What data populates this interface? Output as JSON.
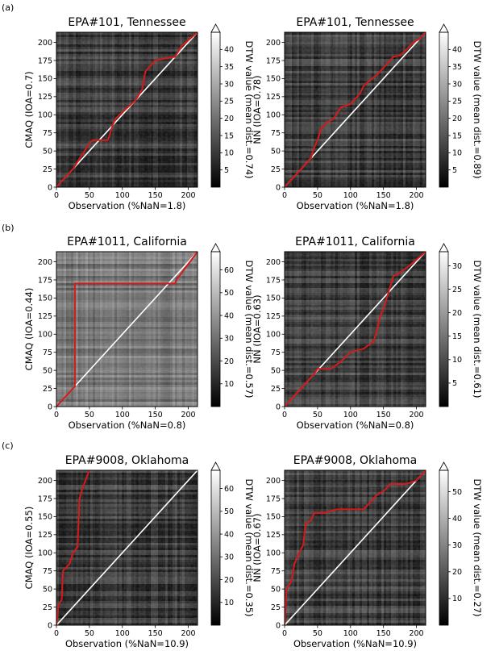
{
  "rows": [
    {
      "label": "(a)"
    },
    {
      "label": "(b)"
    },
    {
      "label": "(c)"
    }
  ],
  "colorbar_label_prefix": "DTW value (mean dist.=",
  "colorbar_label_suffix": ")",
  "chart_data": [
    {
      "type": "heatmap",
      "title": "EPA#101, Tennessee",
      "xlabel": "Observation (%NaN=1.8)",
      "ylabel": "CMAQ (IOA=0.7)",
      "colorbar_label": "DTW value (mean dist.=0.74)",
      "xlim": [
        0,
        214
      ],
      "ylim": [
        0,
        214
      ],
      "xticks": [
        0,
        50,
        100,
        150,
        200
      ],
      "yticks": [
        0,
        25,
        50,
        75,
        100,
        125,
        150,
        175,
        200
      ],
      "cbar_range": [
        0,
        45
      ],
      "cbar_ticks": [
        5,
        10,
        15,
        20,
        25,
        30,
        35,
        40
      ],
      "dtw_path": [
        [
          0,
          0
        ],
        [
          25,
          25
        ],
        [
          50,
          60
        ],
        [
          55,
          65
        ],
        [
          78,
          65
        ],
        [
          80,
          70
        ],
        [
          85,
          85
        ],
        [
          90,
          95
        ],
        [
          120,
          120
        ],
        [
          130,
          135
        ],
        [
          135,
          160
        ],
        [
          150,
          175
        ],
        [
          165,
          178
        ],
        [
          180,
          180
        ],
        [
          190,
          195
        ],
        [
          214,
          214
        ]
      ]
    },
    {
      "type": "heatmap",
      "title": "EPA#101, Tennessee",
      "xlabel": "Observation (%NaN=1.8)",
      "ylabel": "NN (IOA=0.78)",
      "colorbar_label": "DTW value (mean dist.=0.89)",
      "xlim": [
        0,
        214
      ],
      "ylim": [
        0,
        214
      ],
      "xticks": [
        0,
        50,
        100,
        150,
        200
      ],
      "yticks": [
        0,
        25,
        50,
        75,
        100,
        125,
        150,
        175,
        200
      ],
      "cbar_range": [
        0,
        45
      ],
      "cbar_ticks": [
        5,
        10,
        15,
        20,
        25,
        30,
        35,
        40
      ],
      "dtw_path": [
        [
          0,
          0
        ],
        [
          40,
          40
        ],
        [
          45,
          55
        ],
        [
          50,
          65
        ],
        [
          55,
          80
        ],
        [
          65,
          90
        ],
        [
          75,
          95
        ],
        [
          85,
          110
        ],
        [
          100,
          115
        ],
        [
          110,
          125
        ],
        [
          115,
          130
        ],
        [
          120,
          140
        ],
        [
          130,
          148
        ],
        [
          140,
          155
        ],
        [
          150,
          165
        ],
        [
          160,
          175
        ],
        [
          165,
          180
        ],
        [
          175,
          182
        ],
        [
          185,
          190
        ],
        [
          195,
          200
        ],
        [
          205,
          205
        ],
        [
          214,
          214
        ]
      ]
    },
    {
      "type": "heatmap",
      "title": "EPA#1011, California",
      "xlabel": "Observation (%NaN=0.8)",
      "ylabel": "CMAQ (IOA=0.44)",
      "colorbar_label": "DTW value (mean dist.=0.57)",
      "xlim": [
        0,
        214
      ],
      "ylim": [
        0,
        214
      ],
      "xticks": [
        0,
        50,
        100,
        150,
        200
      ],
      "yticks": [
        0,
        25,
        50,
        75,
        100,
        125,
        150,
        175,
        200
      ],
      "cbar_range": [
        0,
        68
      ],
      "cbar_ticks": [
        10,
        20,
        30,
        40,
        50,
        60
      ],
      "dtw_path": [
        [
          0,
          0
        ],
        [
          28,
          28
        ],
        [
          28,
          170
        ],
        [
          180,
          170
        ],
        [
          182,
          175
        ],
        [
          214,
          214
        ]
      ]
    },
    {
      "type": "heatmap",
      "title": "EPA#1011, California",
      "xlabel": "Observation (%NaN=0.8)",
      "ylabel": "NN (IOA=0.63)",
      "colorbar_label": "DTW value (mean dist.=0.61)",
      "xlim": [
        0,
        214
      ],
      "ylim": [
        0,
        214
      ],
      "xticks": [
        0,
        50,
        100,
        150,
        200
      ],
      "yticks": [
        0,
        25,
        50,
        75,
        100,
        125,
        150,
        175,
        200
      ],
      "cbar_range": [
        0,
        33
      ],
      "cbar_ticks": [
        5,
        10,
        15,
        20,
        25,
        30
      ],
      "dtw_path": [
        [
          0,
          0
        ],
        [
          45,
          45
        ],
        [
          50,
          52
        ],
        [
          70,
          52
        ],
        [
          85,
          62
        ],
        [
          100,
          75
        ],
        [
          120,
          80
        ],
        [
          135,
          90
        ],
        [
          140,
          105
        ],
        [
          145,
          125
        ],
        [
          150,
          135
        ],
        [
          155,
          150
        ],
        [
          160,
          165
        ],
        [
          165,
          180
        ],
        [
          175,
          185
        ],
        [
          190,
          195
        ],
        [
          214,
          214
        ]
      ]
    },
    {
      "type": "heatmap",
      "title": "EPA#9008, Oklahoma",
      "xlabel": "Observation (%NaN=10.9)",
      "ylabel": "CMAQ (IOA=0.55)",
      "colorbar_label": "DTW value (mean dist.=0.35)",
      "xlim": [
        0,
        214
      ],
      "ylim": [
        0,
        214
      ],
      "xticks": [
        0,
        50,
        100,
        150,
        200
      ],
      "yticks": [
        0,
        25,
        50,
        75,
        100,
        125,
        150,
        175,
        200
      ],
      "cbar_range": [
        0,
        68
      ],
      "cbar_ticks": [
        10,
        20,
        30,
        40,
        50,
        60
      ],
      "dtw_path": [
        [
          0,
          0
        ],
        [
          3,
          28
        ],
        [
          8,
          35
        ],
        [
          10,
          75
        ],
        [
          20,
          85
        ],
        [
          25,
          100
        ],
        [
          32,
          108
        ],
        [
          35,
          175
        ],
        [
          38,
          185
        ],
        [
          42,
          195
        ],
        [
          50,
          214
        ]
      ]
    },
    {
      "type": "heatmap",
      "title": "EPA#9008, Oklahoma",
      "xlabel": "Observation (%NaN=10.9)",
      "ylabel": "NN (IOA=0.67)",
      "colorbar_label": "DTW value (mean dist.=0.27)",
      "xlim": [
        0,
        214
      ],
      "ylim": [
        0,
        214
      ],
      "xticks": [
        0,
        50,
        100,
        150,
        200
      ],
      "yticks": [
        0,
        25,
        50,
        75,
        100,
        125,
        150,
        175,
        200
      ],
      "cbar_range": [
        0,
        58
      ],
      "cbar_ticks": [
        10,
        20,
        30,
        40,
        50
      ],
      "dtw_path": [
        [
          0,
          0
        ],
        [
          3,
          50
        ],
        [
          10,
          60
        ],
        [
          15,
          85
        ],
        [
          22,
          100
        ],
        [
          28,
          110
        ],
        [
          32,
          140
        ],
        [
          40,
          145
        ],
        [
          45,
          155
        ],
        [
          60,
          155
        ],
        [
          80,
          160
        ],
        [
          120,
          160
        ],
        [
          140,
          180
        ],
        [
          150,
          185
        ],
        [
          160,
          195
        ],
        [
          185,
          195
        ],
        [
          200,
          200
        ],
        [
          214,
          214
        ]
      ]
    }
  ]
}
